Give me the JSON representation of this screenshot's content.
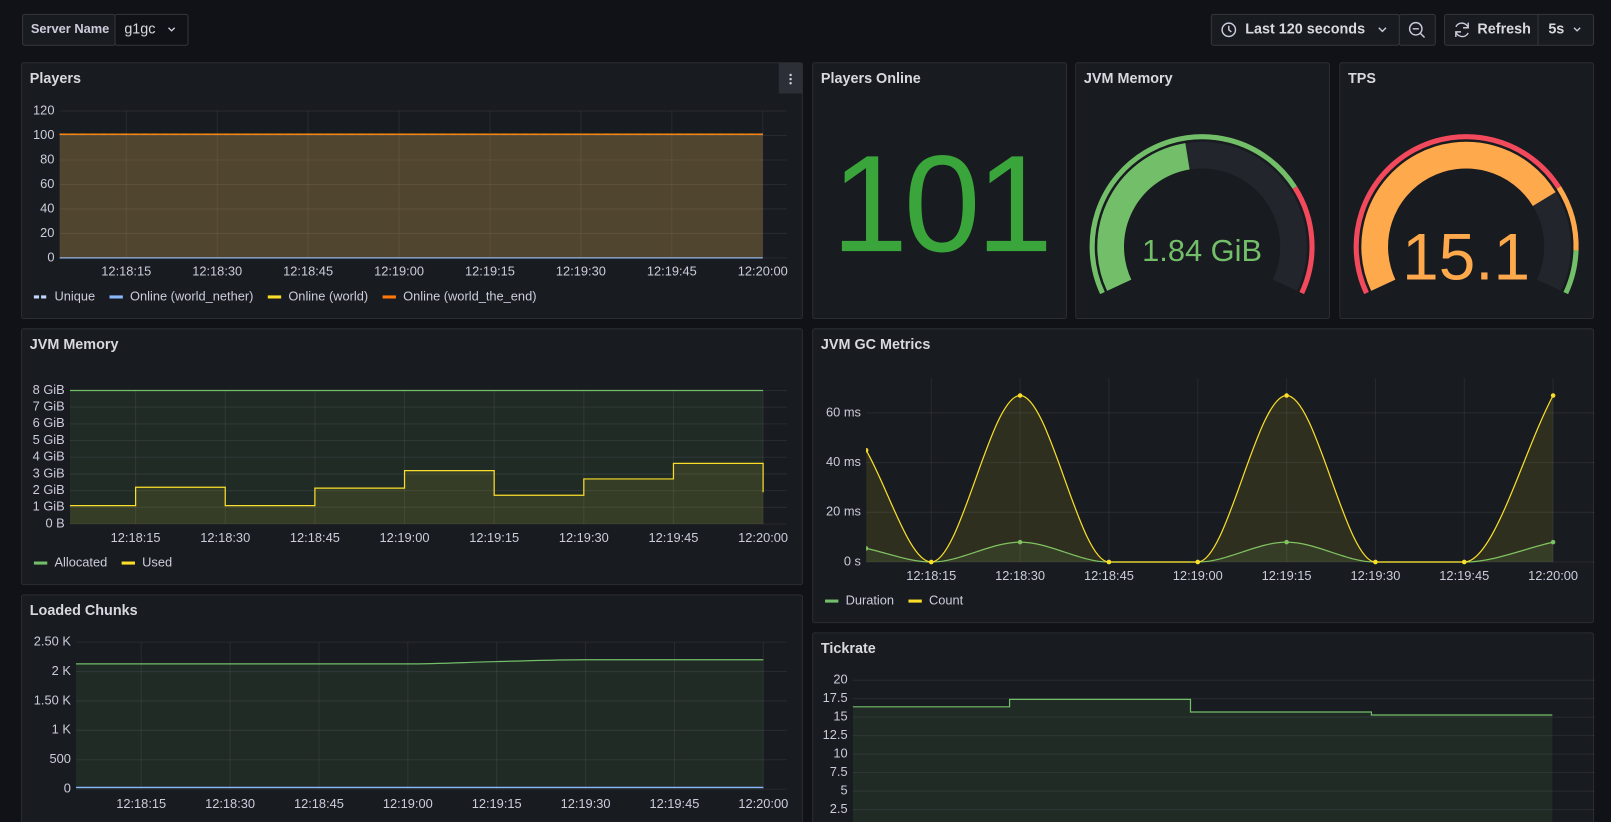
{
  "toolbar": {
    "variable_label": "Server Name",
    "variable_value": "g1gc",
    "time_range": "Last 120 seconds",
    "refresh_label": "Refresh",
    "refresh_interval": "5s"
  },
  "chart_data": [
    {
      "type": "line",
      "title": "Players",
      "xlim": [
        44284,
        44404
      ],
      "xticks": [
        {
          "value": 44295,
          "label": "12:18:15"
        },
        {
          "value": 44310,
          "label": "12:18:30"
        },
        {
          "value": 44325,
          "label": "12:18:45"
        },
        {
          "value": 44340,
          "label": "12:19:00"
        },
        {
          "value": 44355,
          "label": "12:19:15"
        },
        {
          "value": 44370,
          "label": "12:19:30"
        },
        {
          "value": 44385,
          "label": "12:19:45"
        },
        {
          "value": 44400,
          "label": "12:20:00"
        }
      ],
      "ylim": [
        0,
        120
      ],
      "yticks": [
        0,
        20,
        40,
        60,
        80,
        100,
        120
      ],
      "grid": true,
      "legend": "bottom",
      "interpolation": "linear",
      "series": [
        {
          "name": "Unique",
          "color": "#c0d8ff",
          "dash": true,
          "x": [
            44284,
            44400
          ],
          "values": [
            101,
            101
          ]
        },
        {
          "name": "Online (world_nether)",
          "color": "#8ab8ff",
          "x": [
            44284,
            44400
          ],
          "values": [
            0,
            0
          ]
        },
        {
          "name": "Online (world)",
          "color": "#fade2a",
          "x": [
            44284,
            44400
          ],
          "values": [
            101,
            101
          ]
        },
        {
          "name": "Online (world_the_end)",
          "color": "#ff780a",
          "x": [
            44284,
            44400
          ],
          "values": [
            101,
            101
          ]
        }
      ]
    },
    {
      "type": "stat",
      "title": "Players Online",
      "value": 101,
      "color": "#3aa53a"
    },
    {
      "type": "gauge",
      "title": "JVM Memory",
      "value": 1.84,
      "value_label": "1.84 GiB",
      "lim": [
        0,
        4
      ],
      "thresholds": [
        {
          "value": 0,
          "color": "#73bf69"
        },
        {
          "value": 3,
          "color": "#f2495c"
        }
      ]
    },
    {
      "type": "gauge",
      "title": "TPS",
      "value": 15.1,
      "lim": [
        0,
        20
      ],
      "thresholds": [
        {
          "value": 0,
          "color": "#f2495c"
        },
        {
          "value": 15,
          "color": "#ffa94d"
        },
        {
          "value": 18,
          "color": "#73bf69"
        }
      ]
    },
    {
      "type": "line",
      "title": "JVM Memory",
      "xlim": [
        44284,
        44404
      ],
      "xticks": [
        {
          "value": 44295,
          "label": "12:18:15"
        },
        {
          "value": 44310,
          "label": "12:18:30"
        },
        {
          "value": 44325,
          "label": "12:18:45"
        },
        {
          "value": 44340,
          "label": "12:19:00"
        },
        {
          "value": 44355,
          "label": "12:19:15"
        },
        {
          "value": 44370,
          "label": "12:19:30"
        },
        {
          "value": 44385,
          "label": "12:19:45"
        },
        {
          "value": 44400,
          "label": "12:20:00"
        }
      ],
      "ylim": [
        0,
        8
      ],
      "yticks": [
        {
          "value": 0,
          "label": "0 B"
        },
        {
          "value": 1,
          "label": "1 GiB"
        },
        {
          "value": 2,
          "label": "2 GiB"
        },
        {
          "value": 3,
          "label": "3 GiB"
        },
        {
          "value": 4,
          "label": "4 GiB"
        },
        {
          "value": 5,
          "label": "5 GiB"
        },
        {
          "value": 6,
          "label": "6 GiB"
        },
        {
          "value": 7,
          "label": "7 GiB"
        },
        {
          "value": 8,
          "label": "8 GiB"
        }
      ],
      "grid": true,
      "legend": "bottom",
      "interpolation": "step",
      "series": [
        {
          "name": "Allocated",
          "color": "#73bf69",
          "x": [
            44284,
            44400
          ],
          "values": [
            8,
            8
          ]
        },
        {
          "name": "Used",
          "color": "#fade2a",
          "x": [
            44284,
            44295,
            44310,
            44325,
            44340,
            44355,
            44370,
            44385,
            44400
          ],
          "values": [
            1.1,
            2.2,
            1.1,
            2.15,
            3.2,
            1.72,
            2.7,
            3.63,
            1.9
          ]
        }
      ]
    },
    {
      "type": "line",
      "title": "JVM GC Metrics",
      "xlim": [
        44284,
        44407
      ],
      "xticks": [
        {
          "value": 44295,
          "label": "12:18:15"
        },
        {
          "value": 44310,
          "label": "12:18:30"
        },
        {
          "value": 44325,
          "label": "12:18:45"
        },
        {
          "value": 44340,
          "label": "12:19:00"
        },
        {
          "value": 44355,
          "label": "12:19:15"
        },
        {
          "value": 44370,
          "label": "12:19:30"
        },
        {
          "value": 44385,
          "label": "12:19:45"
        },
        {
          "value": 44400,
          "label": "12:20:00"
        }
      ],
      "ylim": [
        0,
        74
      ],
      "yticks": [
        {
          "value": 0,
          "label": "0 s"
        },
        {
          "value": 20,
          "label": "20 ms"
        },
        {
          "value": 40,
          "label": "40 ms"
        },
        {
          "value": 60,
          "label": "60 ms"
        }
      ],
      "grid": true,
      "legend": "bottom",
      "interpolation": "smooth",
      "points": true,
      "series": [
        {
          "name": "Duration",
          "color": "#73bf69",
          "x": [
            44284,
            44295,
            44310,
            44325,
            44340,
            44355,
            44370,
            44385,
            44400
          ],
          "values": [
            5.5,
            0,
            8,
            0,
            0,
            8,
            0,
            0,
            8
          ]
        },
        {
          "name": "Count",
          "color": "#fade2a",
          "x": [
            44284,
            44295,
            44310,
            44325,
            44340,
            44355,
            44370,
            44385,
            44400
          ],
          "values": [
            45,
            0,
            67,
            0,
            0,
            67,
            0,
            0,
            67
          ]
        }
      ]
    },
    {
      "type": "line",
      "title": "Loaded Chunks",
      "xlim": [
        44284,
        44404
      ],
      "xticks": [
        {
          "value": 44295,
          "label": "12:18:15"
        },
        {
          "value": 44310,
          "label": "12:18:30"
        },
        {
          "value": 44325,
          "label": "12:18:45"
        },
        {
          "value": 44340,
          "label": "12:19:00"
        },
        {
          "value": 44355,
          "label": "12:19:15"
        },
        {
          "value": 44370,
          "label": "12:19:30"
        },
        {
          "value": 44385,
          "label": "12:19:45"
        },
        {
          "value": 44400,
          "label": "12:20:00"
        }
      ],
      "ylim": [
        0,
        2500
      ],
      "yticks": [
        0,
        500,
        {
          "value": 1000,
          "label": "1 K"
        },
        {
          "value": 1500,
          "label": "1.50 K"
        },
        {
          "value": 2000,
          "label": "2 K"
        },
        {
          "value": 2500,
          "label": "2.50 K"
        }
      ],
      "grid": true,
      "interpolation": "smooth",
      "series": [
        {
          "color": "#73bf69",
          "x": [
            44284,
            44340,
            44355,
            44370,
            44400
          ],
          "values": [
            2130,
            2130,
            2170,
            2200,
            2200
          ]
        },
        {
          "color": "#8ab8ff",
          "x": [
            44284,
            44400
          ],
          "values": [
            30,
            30
          ]
        }
      ]
    },
    {
      "type": "line",
      "title": "Tickrate",
      "xlim": [
        44284,
        44407
      ],
      "ylim": [
        0,
        20
      ],
      "yticks": [
        2.5,
        5,
        7.5,
        10,
        12.5,
        15,
        17.5,
        20
      ],
      "grid": true,
      "interpolation": "step",
      "series": [
        {
          "color": "#73bf69",
          "x": [
            44284,
            44310,
            44340,
            44370,
            44400
          ],
          "values": [
            16.4,
            17.4,
            15.7,
            15.3,
            15.3
          ]
        }
      ]
    }
  ]
}
